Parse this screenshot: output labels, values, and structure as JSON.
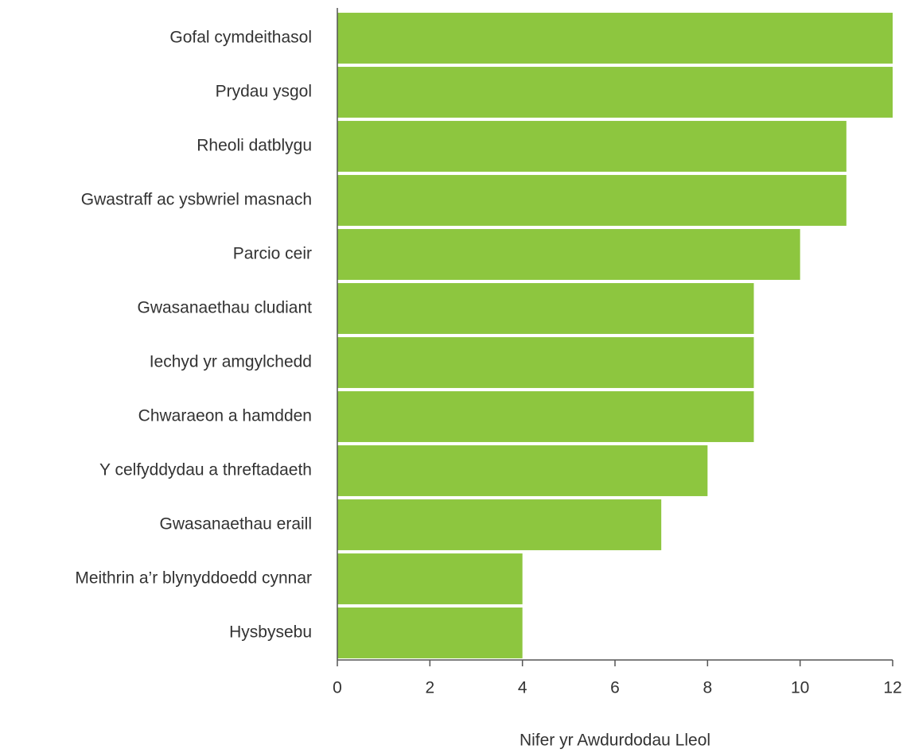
{
  "chart_data": {
    "type": "bar",
    "orientation": "horizontal",
    "categories": [
      "Gofal cymdeithasol",
      "Prydau ysgol",
      "Rheoli datblygu",
      "Gwastraff ac ysbwriel masnach",
      "Parcio ceir",
      "Gwasanaethau cludiant",
      "Iechyd yr amgylchedd",
      "Chwaraeon a hamdden",
      "Y celfyddydau a threftadaeth",
      "Gwasanaethau eraill",
      "Meithrin a’r blynyddoedd cynnar",
      "Hysbysebu"
    ],
    "values": [
      12,
      12,
      11,
      11,
      10,
      9,
      9,
      9,
      8,
      7,
      4,
      4
    ],
    "color": "#8dc63f",
    "xlabel": "Nifer yr Awdurdodau Lleol",
    "xlim": [
      0,
      12
    ],
    "xticks": [
      0,
      2,
      4,
      6,
      8,
      10,
      12
    ],
    "grid": false
  }
}
